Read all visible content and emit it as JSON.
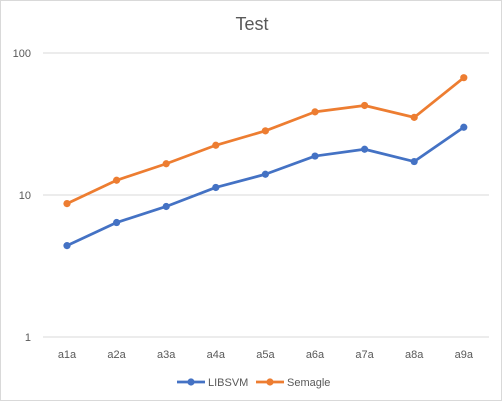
{
  "chart_data": {
    "type": "line",
    "title": "Test",
    "xlabel": "",
    "ylabel": "",
    "y_scale": "log",
    "ylim": [
      1,
      100
    ],
    "y_ticks": [
      "1",
      "10",
      "100"
    ],
    "categories": [
      "a1a",
      "a2a",
      "a3a",
      "a4a",
      "a5a",
      "a6a",
      "a7a",
      "a8a",
      "a9a"
    ],
    "grid": "horizontal",
    "legend_position": "bottom",
    "series": [
      {
        "name": "LIBSVM",
        "color": "#4472C4",
        "values": [
          4.4,
          6.4,
          8.3,
          11.3,
          14.0,
          18.8,
          21.0,
          17.2,
          30.0
        ]
      },
      {
        "name": "Semagle",
        "color": "#ED7D31",
        "values": [
          8.7,
          12.7,
          16.6,
          22.4,
          28.3,
          38.5,
          42.7,
          35.2,
          67.0
        ]
      }
    ]
  }
}
